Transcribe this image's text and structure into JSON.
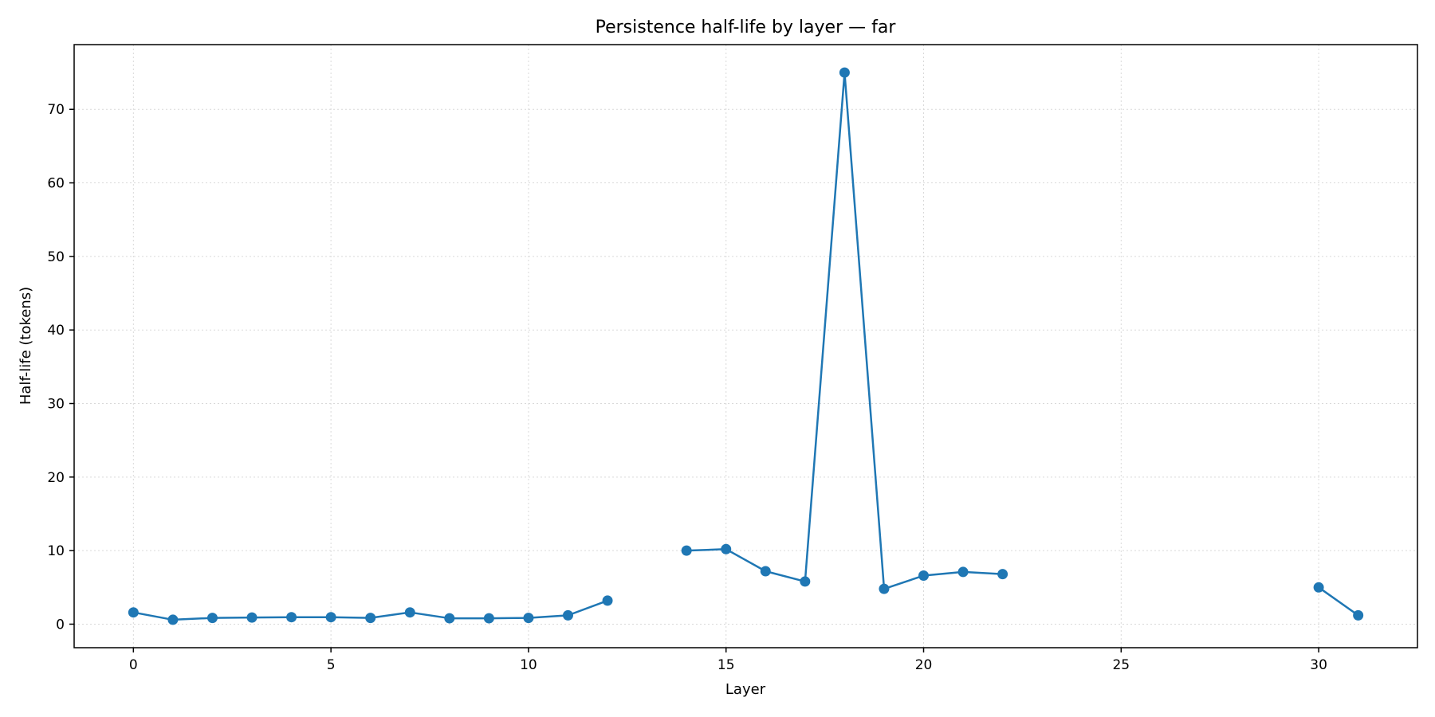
{
  "chart_data": {
    "type": "line",
    "title": "Persistence half-life by layer — far",
    "xlabel": "Layer",
    "ylabel": "Half-life (tokens)",
    "xlim": [
      -1.5,
      32.5
    ],
    "ylim": [
      -3.2,
      78.8
    ],
    "xticks": [
      0,
      5,
      10,
      15,
      20,
      25,
      30
    ],
    "yticks": [
      0,
      10,
      20,
      30,
      40,
      50,
      60,
      70
    ],
    "grid": true,
    "color": "#1f77b4",
    "series": [
      {
        "x": [
          0,
          1,
          2,
          3,
          4,
          5,
          6,
          7,
          8,
          9,
          10,
          11,
          12,
          13,
          14,
          15,
          16,
          17,
          18,
          19,
          20,
          21,
          22,
          23,
          24,
          25,
          26,
          27,
          28,
          29,
          30,
          31
        ],
        "values": [
          1.6,
          0.6,
          0.85,
          0.9,
          0.95,
          0.95,
          0.85,
          1.6,
          0.8,
          0.8,
          0.85,
          1.2,
          3.2,
          null,
          10.0,
          10.2,
          7.2,
          5.8,
          75.0,
          4.8,
          6.6,
          7.1,
          6.8,
          null,
          null,
          null,
          null,
          null,
          null,
          null,
          5.0,
          1.2
        ]
      }
    ]
  }
}
